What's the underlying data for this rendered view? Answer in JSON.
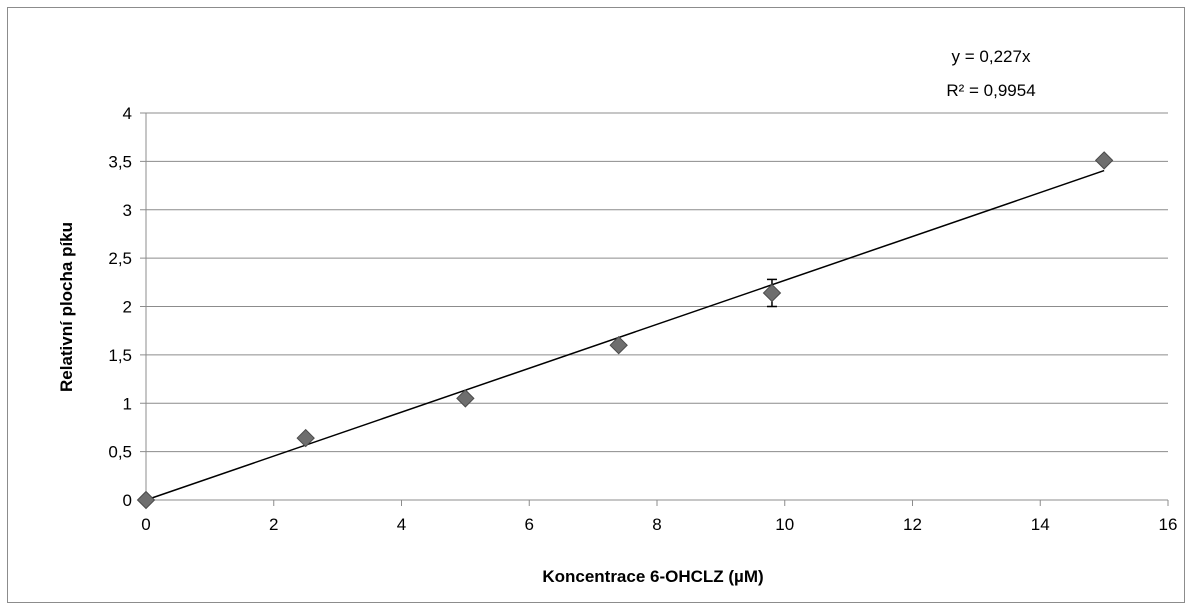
{
  "chart_data": {
    "type": "scatter",
    "xlabel": "Koncentrace 6-OHCLZ (µM)",
    "ylabel": "Relativní plocha píku",
    "xlim": [
      0,
      16
    ],
    "ylim": [
      0,
      4
    ],
    "x_ticks": [
      "0",
      "2",
      "4",
      "6",
      "8",
      "10",
      "12",
      "14",
      "16"
    ],
    "y_ticks": [
      "0",
      "0,5",
      "1",
      "1,5",
      "2",
      "2,5",
      "3",
      "3,5",
      "4"
    ],
    "grid": "horizontal",
    "series": [
      {
        "points": [
          {
            "x": 0,
            "y": 0
          },
          {
            "x": 2.5,
            "y": 0.64
          },
          {
            "x": 5,
            "y": 1.05
          },
          {
            "x": 7.4,
            "y": 1.6
          },
          {
            "x": 9.8,
            "y": 2.14,
            "error": 0.14
          },
          {
            "x": 15,
            "y": 3.51
          }
        ],
        "marker": "diamond",
        "color": "#6e6e6e"
      }
    ],
    "trendline": {
      "type": "linear",
      "slope": 0.227,
      "intercept": 0,
      "x_range": [
        0,
        15
      ],
      "color": "#000000",
      "equation": "y = 0,227x",
      "r_squared": "R² = 0,9954"
    }
  }
}
